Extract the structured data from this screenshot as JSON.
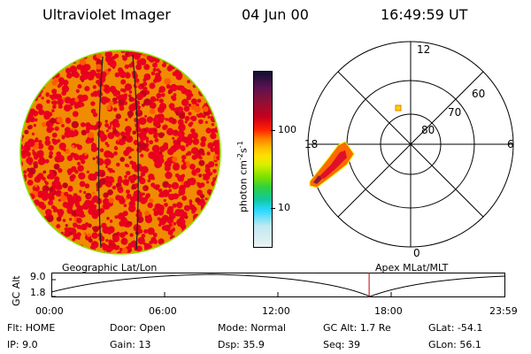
{
  "header": {
    "title": "Ultraviolet Imager",
    "date": "04 Jun 00",
    "time": "16:49:59 UT"
  },
  "colorbar": {
    "unit": "photon cm",
    "exp1": "-2",
    "s": "s",
    "exp2": "-1",
    "tick_high": "100",
    "tick_low": "10"
  },
  "polar": {
    "hour_top": "12",
    "hour_left": "18",
    "hour_right": "6",
    "hour_bottom": "0",
    "lat_60": "60",
    "lat_70": "70",
    "lat_80": "80"
  },
  "timeline": {
    "left_label": "Geographic Lat/Lon",
    "right_label": "Apex MLat/MLT",
    "axis_label": "GC Alt",
    "y_max": "9.0",
    "y_min": "1.8",
    "x_ticks": [
      "00:00",
      "06:00",
      "12:00",
      "18:00",
      "23:59"
    ],
    "current_time_fraction": 0.7014
  },
  "status": {
    "flt_label": "Flt:",
    "flt_value": "HOME",
    "ip_label": "IP:",
    "ip_value": "9.0",
    "door_label": "Door:",
    "door_value": "Open",
    "gain_label": "Gain:",
    "gain_value": "13",
    "mode_label": "Mode:",
    "mode_value": "Normal",
    "dsp_label": "Dsp:",
    "dsp_value": "35.9",
    "gcalt_label": "GC Alt:",
    "gcalt_value": "1.7 Re",
    "seq_label": "Seq:",
    "seq_value": "39",
    "glat_label": "GLat:",
    "glat_value": "-54.1",
    "glon_label": "GLon:",
    "glon_value": "56.1"
  },
  "colors": {
    "disk_base": "#f08c00",
    "disk_red": "#e8001e",
    "disk_limb": "#8ee000",
    "marker": "#ffd000",
    "cursor": "#c00000"
  }
}
